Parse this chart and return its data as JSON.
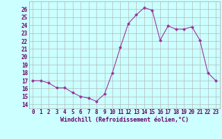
{
  "x": [
    0,
    1,
    2,
    3,
    4,
    5,
    6,
    7,
    8,
    9,
    10,
    11,
    12,
    13,
    14,
    15,
    16,
    17,
    18,
    19,
    20,
    21,
    22,
    23
  ],
  "y": [
    17,
    17,
    16.7,
    16.1,
    16.1,
    15.5,
    15.0,
    14.8,
    14.4,
    15.3,
    18.0,
    21.2,
    24.2,
    25.3,
    26.2,
    25.9,
    22.1,
    23.9,
    23.5,
    23.5,
    23.8,
    22.1,
    18.0,
    17.0
  ],
  "line_color": "#993399",
  "marker_color": "#993399",
  "bg_color": "#ccffff",
  "grid_color": "#aaaaaa",
  "xlabel": "Windchill (Refroidissement éolien,°C)",
  "ylabel_ticks": [
    14,
    15,
    16,
    17,
    18,
    19,
    20,
    21,
    22,
    23,
    24,
    25,
    26
  ],
  "ylim": [
    13.5,
    27.0
  ],
  "xlim": [
    -0.5,
    23.5
  ],
  "xlabel_color": "#660066",
  "tick_color": "#660066",
  "font_family": "monospace",
  "tick_fontsize": 5.5,
  "xlabel_fontsize": 6.0
}
